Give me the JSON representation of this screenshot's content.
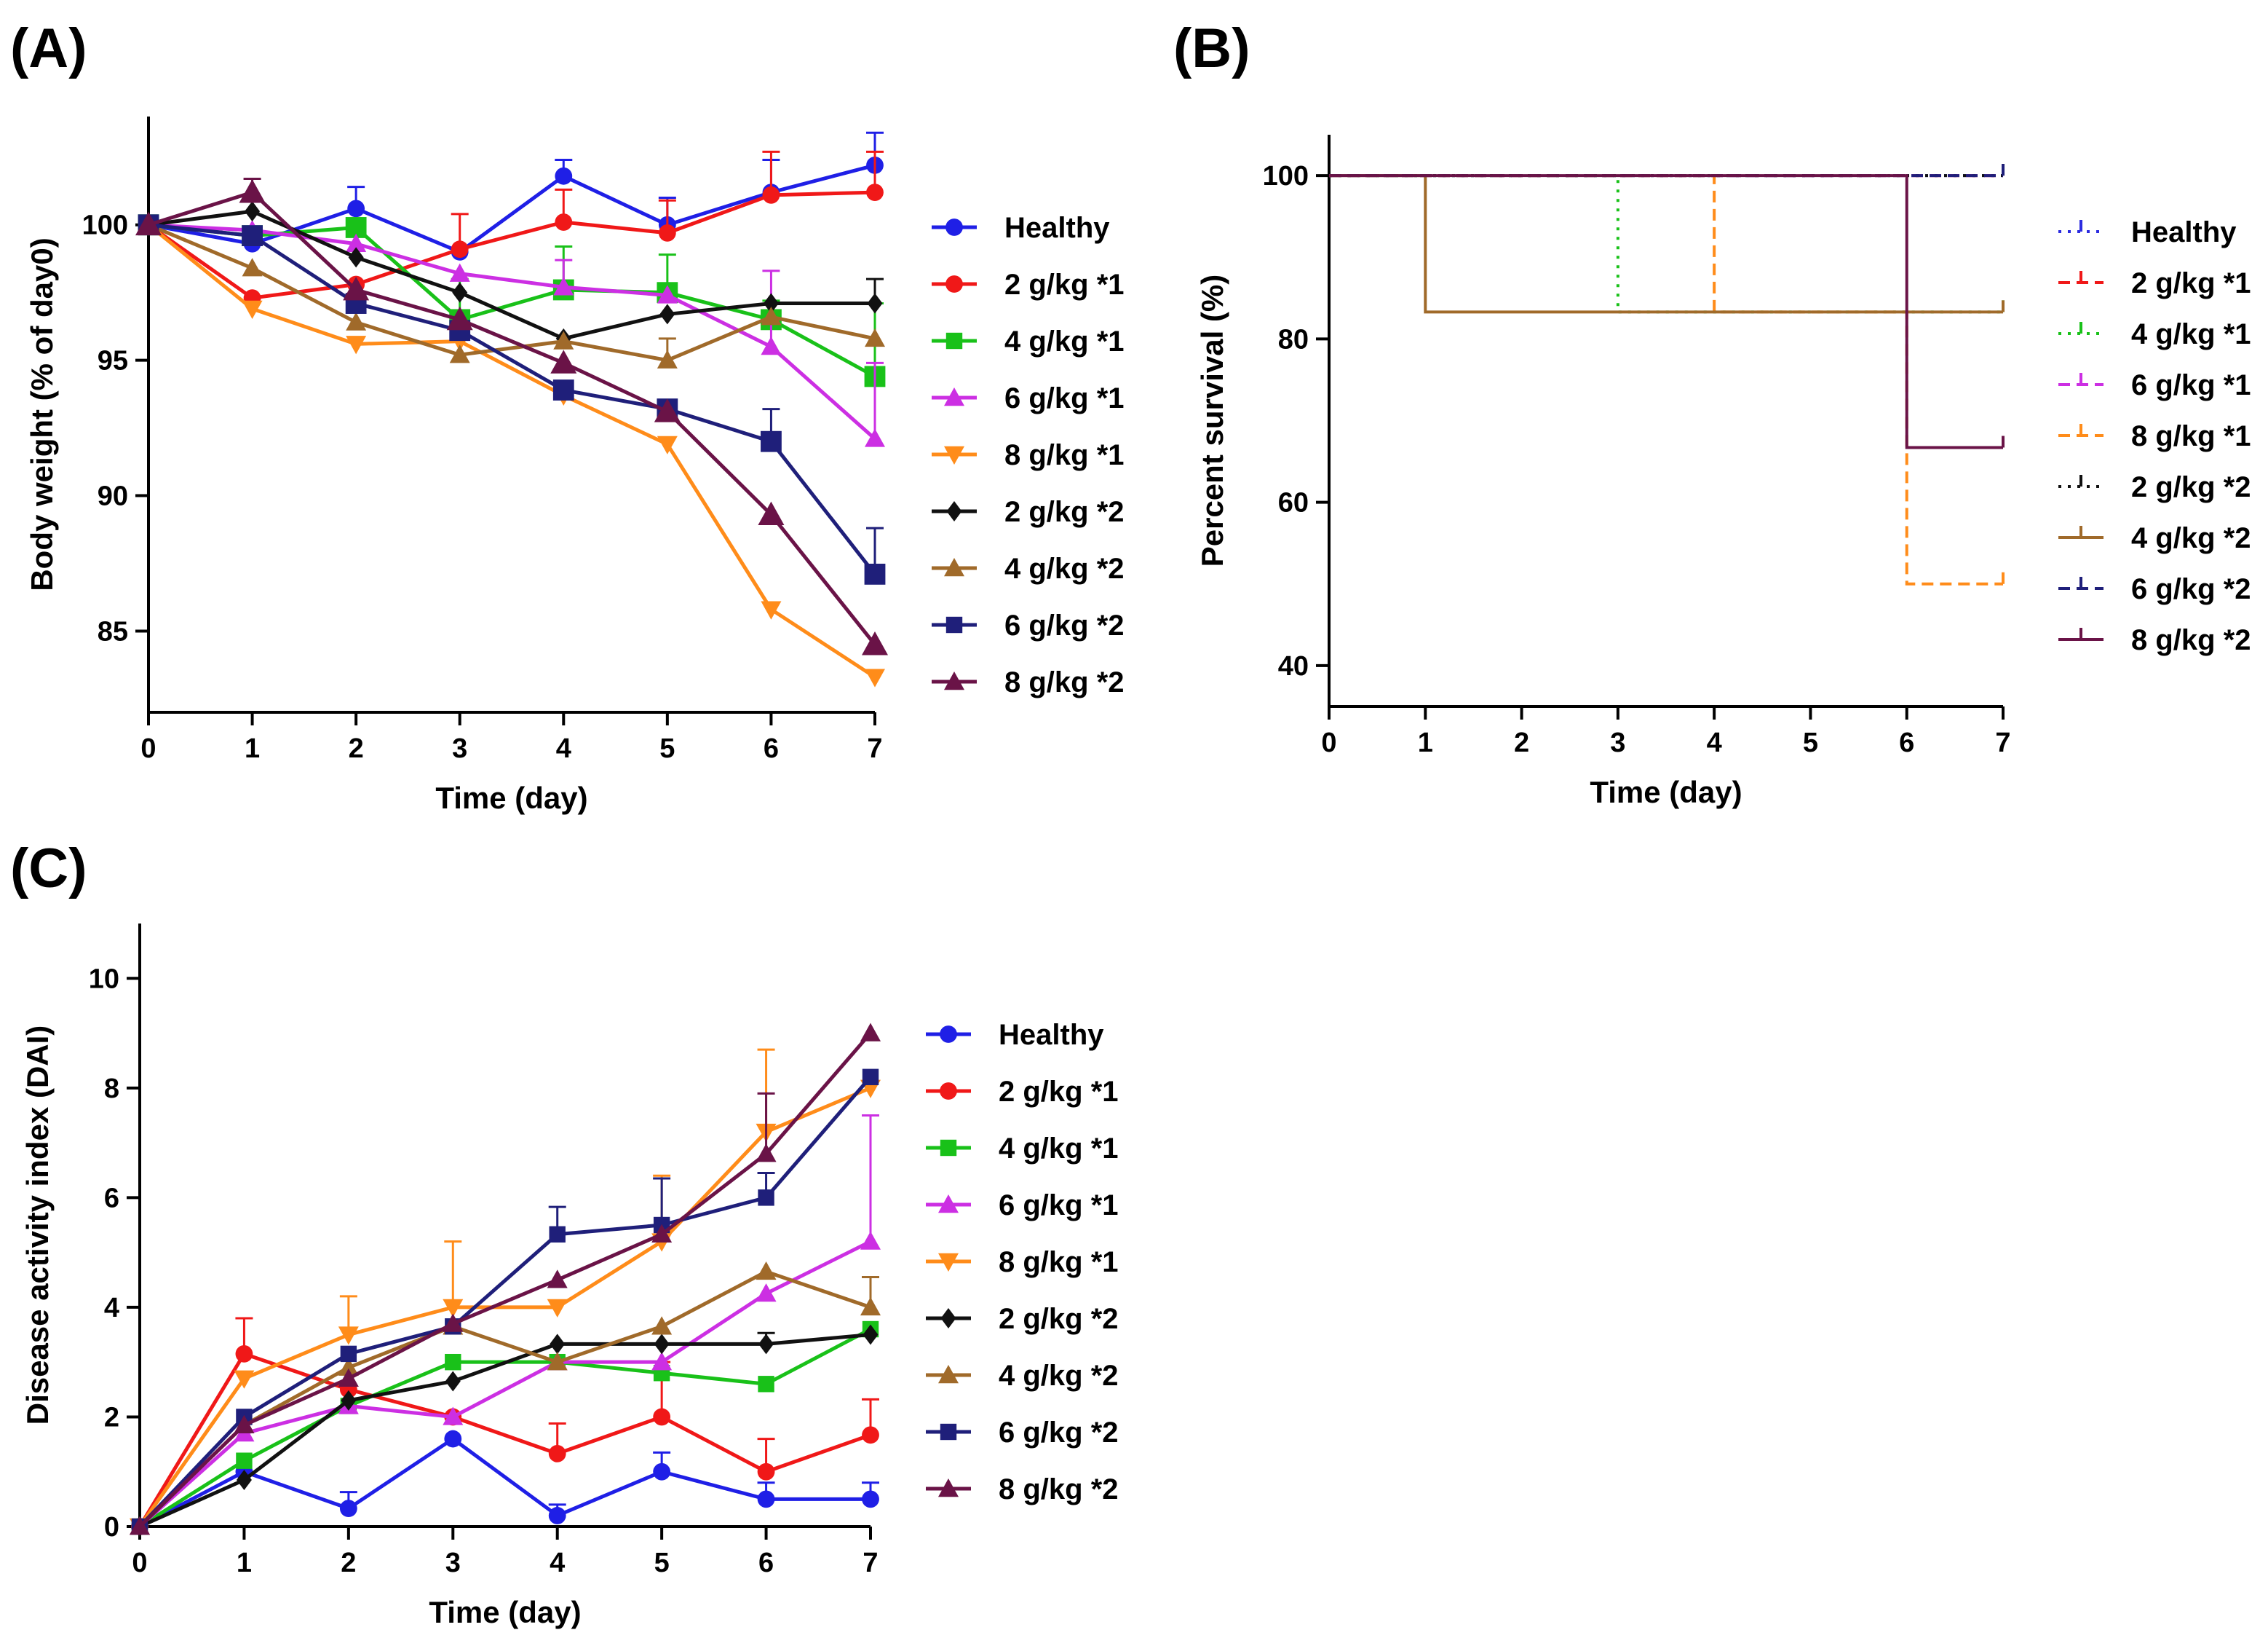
{
  "figure_labels": {
    "a": "(A)",
    "b": "(B)",
    "c": "(C)"
  },
  "chart_data": [
    {
      "panel": "A",
      "type": "line",
      "title": "",
      "xlabel": "Time (day)",
      "ylabel": "Body weight (% of day0)",
      "xlim": [
        0,
        7
      ],
      "ylim": [
        82,
        104
      ],
      "xticks": [
        0,
        1,
        2,
        3,
        4,
        5,
        6,
        7
      ],
      "yticks": [
        85,
        90,
        95,
        100
      ],
      "grid": false,
      "legend_position": "right",
      "x": [
        0,
        1,
        2,
        3,
        4,
        5,
        6,
        7
      ],
      "series": [
        {
          "name": "Healthy",
          "color": "#1f1fe6",
          "marker": "circle",
          "values": [
            100,
            99.3,
            100.6,
            99.0,
            101.8,
            100.0,
            101.2,
            102.2
          ],
          "err": [
            0,
            0.5,
            0.8,
            0,
            0.6,
            1.0,
            1.2,
            1.2
          ]
        },
        {
          "name": "2 g/kg *1",
          "color": "#f01818",
          "marker": "circle",
          "values": [
            100,
            97.3,
            97.8,
            99.1,
            100.1,
            99.7,
            101.1,
            101.2
          ],
          "err": [
            0,
            0,
            0,
            1.3,
            1.2,
            1.2,
            1.6,
            1.5
          ]
        },
        {
          "name": "4 g/kg *1",
          "color": "#19c119",
          "marker": "square",
          "values": [
            100,
            99.6,
            99.9,
            96.5,
            97.6,
            97.5,
            96.5,
            94.4
          ],
          "err": [
            0,
            0,
            0,
            1.5,
            1.6,
            1.4,
            0.7,
            2.7
          ]
        },
        {
          "name": "6 g/kg *1",
          "color": "#cc2fe3",
          "marker": "triangle",
          "values": [
            100,
            99.8,
            99.3,
            98.2,
            97.7,
            97.4,
            95.5,
            92.1
          ],
          "err": [
            0,
            0,
            0,
            0,
            1.0,
            0,
            2.8,
            2.8
          ]
        },
        {
          "name": "8 g/kg *1",
          "color": "#ff8c1a",
          "marker": "tri-down",
          "values": [
            100,
            96.9,
            95.6,
            95.7,
            93.7,
            91.9,
            85.8,
            83.3
          ],
          "err": [
            0,
            0,
            0,
            0,
            0,
            0,
            0,
            0
          ]
        },
        {
          "name": "2 g/kg *2",
          "color": "#111111",
          "marker": "diamond",
          "values": [
            100,
            100.5,
            98.8,
            97.5,
            95.8,
            96.7,
            97.1,
            97.1
          ],
          "err": [
            0,
            0,
            0,
            0,
            0,
            0,
            0,
            0.9
          ]
        },
        {
          "name": "4 g/kg *2",
          "color": "#a06a2a",
          "marker": "triangle",
          "values": [
            100,
            98.4,
            96.4,
            95.2,
            95.7,
            95.0,
            96.6,
            95.8
          ],
          "err": [
            0,
            0,
            0,
            0,
            0,
            0.8,
            0,
            0
          ]
        },
        {
          "name": "6 g/kg *2",
          "color": "#1f1f7a",
          "marker": "square",
          "values": [
            100,
            99.6,
            97.1,
            96.1,
            93.9,
            93.2,
            92.0,
            87.1
          ],
          "err": [
            0,
            0,
            0,
            0,
            0,
            0,
            1.2,
            1.7
          ]
        },
        {
          "name": "8 g/kg *2",
          "color": "#6a1347",
          "marker": "triangle",
          "values": [
            100,
            101.2,
            97.6,
            96.5,
            94.9,
            93.1,
            89.3,
            84.5
          ],
          "err": [
            0,
            0.5,
            0,
            0,
            0,
            0,
            0,
            0
          ]
        }
      ]
    },
    {
      "panel": "B",
      "type": "line",
      "subtype": "survival",
      "title": "",
      "xlabel": "Time (day)",
      "ylabel": "Percent survival (%)",
      "xlim": [
        0,
        7
      ],
      "ylim": [
        35,
        105
      ],
      "xticks": [
        0,
        1,
        2,
        3,
        4,
        5,
        6,
        7
      ],
      "yticks": [
        40,
        60,
        80,
        100
      ],
      "grid": false,
      "legend_position": "right",
      "series": [
        {
          "name": "Healthy",
          "color": "#2c2ce0",
          "dash": "dot",
          "steps": [
            [
              0,
              100
            ],
            [
              7,
              100
            ]
          ]
        },
        {
          "name": "2 g/kg *1",
          "color": "#f01818",
          "dash": "dash",
          "steps": [
            [
              0,
              100
            ],
            [
              7,
              100
            ]
          ]
        },
        {
          "name": "4 g/kg *1",
          "color": "#19c119",
          "dash": "dot",
          "steps": [
            [
              0,
              100
            ],
            [
              3,
              100
            ],
            [
              3,
              83.3
            ],
            [
              7,
              83.3
            ]
          ]
        },
        {
          "name": "6 g/kg *1",
          "color": "#cc2fe3",
          "dash": "dash",
          "steps": [
            [
              0,
              100
            ],
            [
              7,
              100
            ]
          ]
        },
        {
          "name": "8 g/kg *1",
          "color": "#ff8c1a",
          "dash": "dash",
          "steps": [
            [
              0,
              100
            ],
            [
              4,
              100
            ],
            [
              4,
              83.3
            ],
            [
              6,
              83.3
            ],
            [
              6,
              50
            ],
            [
              7,
              50
            ]
          ]
        },
        {
          "name": "2 g/kg *2",
          "color": "#111111",
          "dash": "dot",
          "steps": [
            [
              0,
              100
            ],
            [
              7,
              100
            ]
          ]
        },
        {
          "name": "4 g/kg *2",
          "color": "#a06a2a",
          "dash": "solid",
          "steps": [
            [
              0,
              100
            ],
            [
              1,
              100
            ],
            [
              1,
              83.3
            ],
            [
              7,
              83.3
            ]
          ]
        },
        {
          "name": "6 g/kg *2",
          "color": "#1f1f7a",
          "dash": "dash",
          "steps": [
            [
              0,
              100
            ],
            [
              7,
              100
            ]
          ]
        },
        {
          "name": "8 g/kg *2",
          "color": "#6a1347",
          "dash": "solid",
          "steps": [
            [
              0,
              100
            ],
            [
              6,
              100
            ],
            [
              6,
              66.7
            ],
            [
              7,
              66.7
            ]
          ]
        }
      ]
    },
    {
      "panel": "C",
      "type": "line",
      "title": "",
      "xlabel": "Time (day)",
      "ylabel": "Disease activity index (DAI)",
      "xlim": [
        0,
        7
      ],
      "ylim": [
        0,
        11
      ],
      "xticks": [
        0,
        1,
        2,
        3,
        4,
        5,
        6,
        7
      ],
      "yticks": [
        0,
        2,
        4,
        6,
        8,
        10
      ],
      "grid": false,
      "legend_position": "right",
      "x": [
        0,
        1,
        2,
        3,
        4,
        5,
        6,
        7
      ],
      "series": [
        {
          "name": "Healthy",
          "color": "#1f1fe6",
          "marker": "circle",
          "values": [
            0,
            1.0,
            0.33,
            1.6,
            0.2,
            1.0,
            0.5,
            0.5
          ],
          "err": [
            0,
            0,
            0.3,
            0,
            0.2,
            0.35,
            0.3,
            0.3
          ]
        },
        {
          "name": "2 g/kg *1",
          "color": "#f01818",
          "marker": "circle",
          "values": [
            0,
            3.15,
            2.5,
            2.0,
            1.33,
            2.0,
            1.0,
            1.67
          ],
          "err": [
            0,
            0.65,
            0,
            0,
            0.55,
            1.0,
            0.6,
            0.65
          ]
        },
        {
          "name": "4 g/kg *1",
          "color": "#19c119",
          "marker": "square",
          "values": [
            0,
            1.2,
            2.2,
            3.0,
            3.0,
            2.8,
            2.6,
            3.6
          ],
          "err": [
            0,
            0,
            0,
            0,
            0,
            0,
            0,
            0
          ]
        },
        {
          "name": "6 g/kg *1",
          "color": "#cc2fe3",
          "marker": "triangle",
          "values": [
            0,
            1.7,
            2.2,
            2.0,
            3.0,
            3.0,
            4.25,
            5.2
          ],
          "err": [
            0,
            0,
            0,
            0,
            0,
            0,
            0,
            2.3
          ]
        },
        {
          "name": "8 g/kg *1",
          "color": "#ff8c1a",
          "marker": "tri-down",
          "values": [
            0,
            2.7,
            3.5,
            4.0,
            4.0,
            5.2,
            7.2,
            8.0
          ],
          "err": [
            0,
            0,
            0.7,
            1.2,
            0,
            1.2,
            1.5,
            0
          ]
        },
        {
          "name": "2 g/kg *2",
          "color": "#111111",
          "marker": "diamond",
          "values": [
            0,
            0.85,
            2.3,
            2.65,
            3.33,
            3.33,
            3.33,
            3.5
          ],
          "err": [
            0,
            0,
            0,
            0,
            0,
            0,
            0.2,
            0
          ]
        },
        {
          "name": "4 g/kg *2",
          "color": "#a06a2a",
          "marker": "triangle",
          "values": [
            0,
            1.85,
            2.9,
            3.65,
            3.0,
            3.65,
            4.65,
            4.0
          ],
          "err": [
            0,
            0,
            0,
            0,
            0,
            0,
            0,
            0.55
          ]
        },
        {
          "name": "6 g/kg *2",
          "color": "#1f1f7a",
          "marker": "square",
          "values": [
            0,
            2.0,
            3.15,
            3.65,
            5.33,
            5.5,
            6.0,
            8.2
          ],
          "err": [
            0,
            0,
            0,
            0,
            0.5,
            0.85,
            0.45,
            0
          ]
        },
        {
          "name": "8 g/kg *2",
          "color": "#6a1347",
          "marker": "triangle",
          "values": [
            0,
            1.85,
            2.7,
            3.7,
            4.5,
            5.33,
            6.8,
            9.0
          ],
          "err": [
            0,
            0,
            0,
            0,
            0,
            0,
            1.1,
            0
          ]
        }
      ]
    }
  ]
}
